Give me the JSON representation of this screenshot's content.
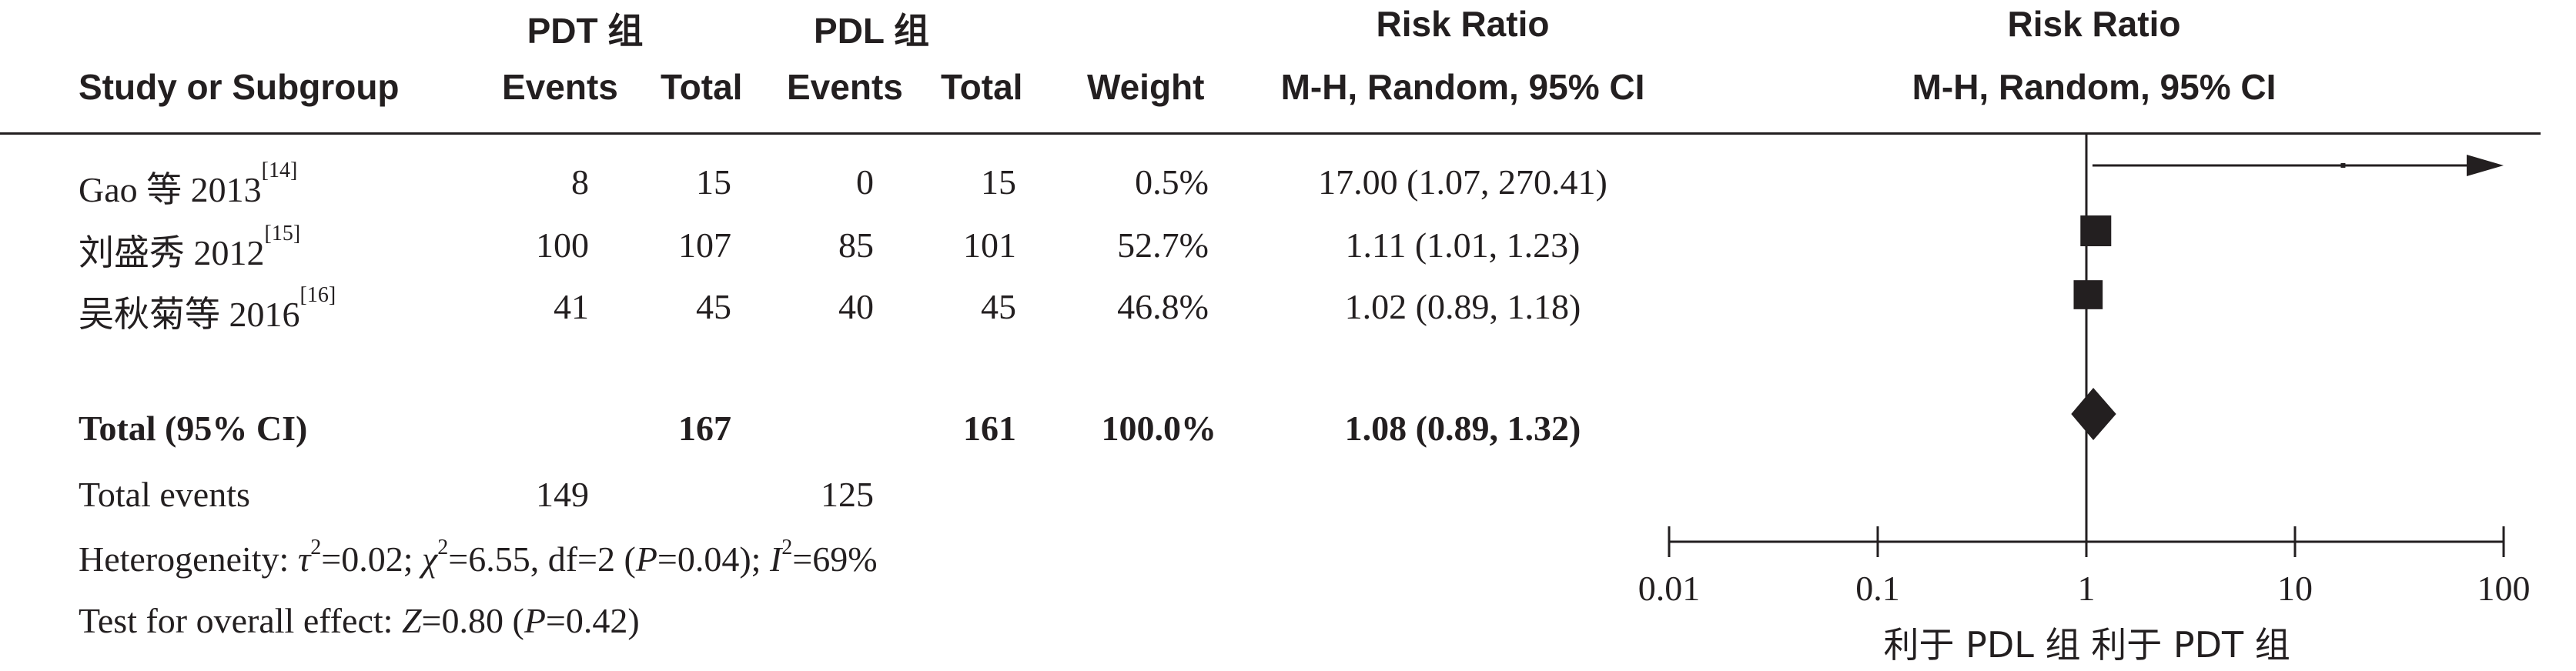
{
  "header": {
    "group1": "PDT 组",
    "group2": "PDL 组",
    "rr_top": "Risk Ratio",
    "rr_top_plot": "Risk Ratio",
    "study_col": "Study or Subgroup",
    "events1": "Events",
    "total1": "Total",
    "events2": "Events",
    "total2": "Total",
    "weight": "Weight",
    "method": "M-H, Random, 95% CI",
    "method_plot": "M-H, Random, 95% CI"
  },
  "studies": [
    {
      "name": "Gao 等 2013",
      "ref": "[14]",
      "e1": "8",
      "t1": "15",
      "e2": "0",
      "t2": "15",
      "weight": "0.5%",
      "ci": "17.00 (1.07, 270.41)"
    },
    {
      "name": "刘盛秀 2012",
      "ref": "[15]",
      "e1": "100",
      "t1": "107",
      "e2": "85",
      "t2": "101",
      "weight": "52.7%",
      "ci": "1.11 (1.01, 1.23)"
    },
    {
      "name": "吴秋菊等 2016",
      "ref": "[16]",
      "e1": "41",
      "t1": "45",
      "e2": "40",
      "t2": "45",
      "weight": "46.8%",
      "ci": "1.02 (0.89, 1.18)"
    }
  ],
  "total": {
    "label": "Total (95% CI)",
    "t1": "167",
    "t2": "161",
    "weight": "100.0%",
    "ci": "1.08 (0.89, 1.32)"
  },
  "total_events": {
    "label": "Total events",
    "e1": "149",
    "e2": "125"
  },
  "heterogeneity": {
    "lead": "Heterogeneity: ",
    "tau_sym": "τ",
    "tau_val": "=0.02; ",
    "chi_sym": "χ",
    "chi_val": "=6.55, df=2 (",
    "p_sym": "P",
    "p_val": "=0.04); ",
    "i_sym": "I",
    "i_val": "=69%",
    "sq": "2"
  },
  "overall_effect": {
    "lead": "Test for overall effect: ",
    "z_sym": "Z",
    "z_val": "=0.80 (",
    "p_sym": "P",
    "p_val": "=0.42)"
  },
  "axis": {
    "ticks": [
      "0.01",
      "0.1",
      "1",
      "10",
      "100"
    ],
    "favours_left": "利于 PDL 组",
    "favours_right": "利于 PDT 组"
  },
  "chart_data": {
    "type": "scatter",
    "title": "Risk Ratio",
    "xlabel": "M-H, Random, 95% CI",
    "x_scale": "log",
    "xlim": [
      0.01,
      100
    ],
    "studies": [
      {
        "name": "Gao 等 2013",
        "rr": 17.0,
        "lower": 1.07,
        "upper": 270.41,
        "weight": 0.5,
        "arrow_right": true
      },
      {
        "name": "刘盛秀 2012",
        "rr": 1.11,
        "lower": 1.01,
        "upper": 1.23,
        "weight": 52.7
      },
      {
        "name": "吴秋菊等 2016",
        "rr": 1.02,
        "lower": 0.89,
        "upper": 1.18,
        "weight": 46.8
      }
    ],
    "pooled": {
      "rr": 1.08,
      "lower": 0.89,
      "upper": 1.32,
      "marker": "diamond"
    },
    "ticks": [
      0.01,
      0.1,
      1,
      10,
      100
    ],
    "reference_line": 1,
    "colors": {
      "ink": "#231f20"
    }
  }
}
